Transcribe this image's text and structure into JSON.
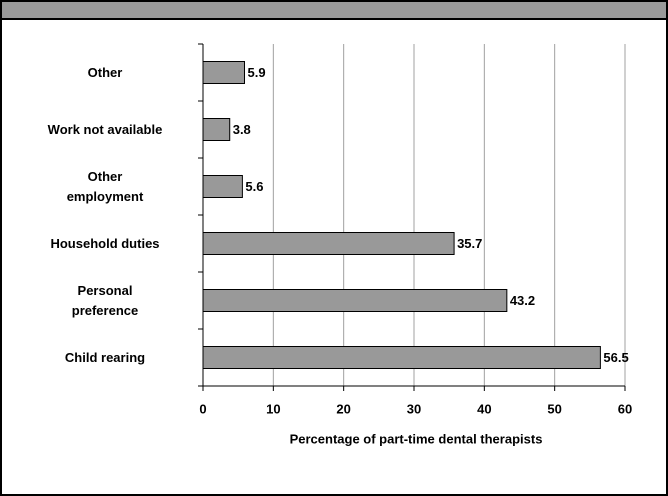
{
  "chart_data": {
    "type": "barh",
    "x_label": "Percentage of part-time dental therapists",
    "categories": [
      "Other",
      "Work not available",
      "Other\nemployment",
      "Household duties",
      "Personal\npreference",
      "Child rearing"
    ],
    "values": [
      5.9,
      3.8,
      5.6,
      35.7,
      43.2,
      56.5
    ],
    "color": "#999999",
    "xlim": [
      0,
      60
    ],
    "xticks": [
      0,
      10,
      20,
      30,
      40,
      50,
      60
    ],
    "grid": true
  }
}
